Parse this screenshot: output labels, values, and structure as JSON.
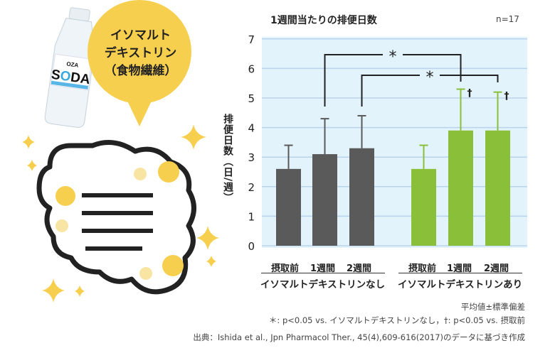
{
  "illustration": {
    "bubble_text": [
      "イソマルト",
      "デキストリン",
      "（食物繊維）"
    ],
    "bottle_brand": "OZA SODA",
    "bubble_color": "#f7cf4f"
  },
  "chart_data": {
    "type": "bar",
    "title": "1週間当たりの排便日数",
    "n_label": "n=17",
    "ylabel": "排便日数（日/週）",
    "ylim": [
      0,
      7
    ],
    "yticks": [
      0,
      1,
      2,
      3,
      4,
      5,
      6,
      7
    ],
    "grid": true,
    "groups": [
      {
        "name": "イソマルトデキストリンなし",
        "color": "#5a5a5a",
        "categories": [
          "摂取前",
          "1週間",
          "2週間"
        ],
        "values": [
          2.6,
          3.1,
          3.3
        ],
        "sd": [
          0.8,
          1.2,
          1.1
        ],
        "dagger": [
          false,
          false,
          false
        ]
      },
      {
        "name": "イソマルトデキストリンあり",
        "color": "#8abf3a",
        "categories": [
          "摂取前",
          "1週間",
          "2週間"
        ],
        "values": [
          2.6,
          3.9,
          3.9
        ],
        "sd": [
          0.8,
          1.4,
          1.3
        ],
        "dagger": [
          false,
          true,
          true
        ]
      }
    ],
    "significance": [
      {
        "from": "イソマルトデキストリンなし 1週間",
        "to": "イソマルトデキストリンあり 1週間",
        "mark": "*"
      },
      {
        "from": "イソマルトデキストリンなし 2週間",
        "to": "イソマルトデキストリンあり 2週間",
        "mark": "*"
      }
    ],
    "dagger_mark": "†",
    "background_color": "#e2f3fb"
  },
  "notes": {
    "stats": "平均値±標準偏差",
    "significance": "＊: p<0.05 vs. イソマルトデキストリンなし，†: p<0.05 vs. 摂取前",
    "source": "出典：Ishida et al., Jpn Pharmacol Ther., 45(4),609-616(2017)のデータに基づき作成"
  }
}
